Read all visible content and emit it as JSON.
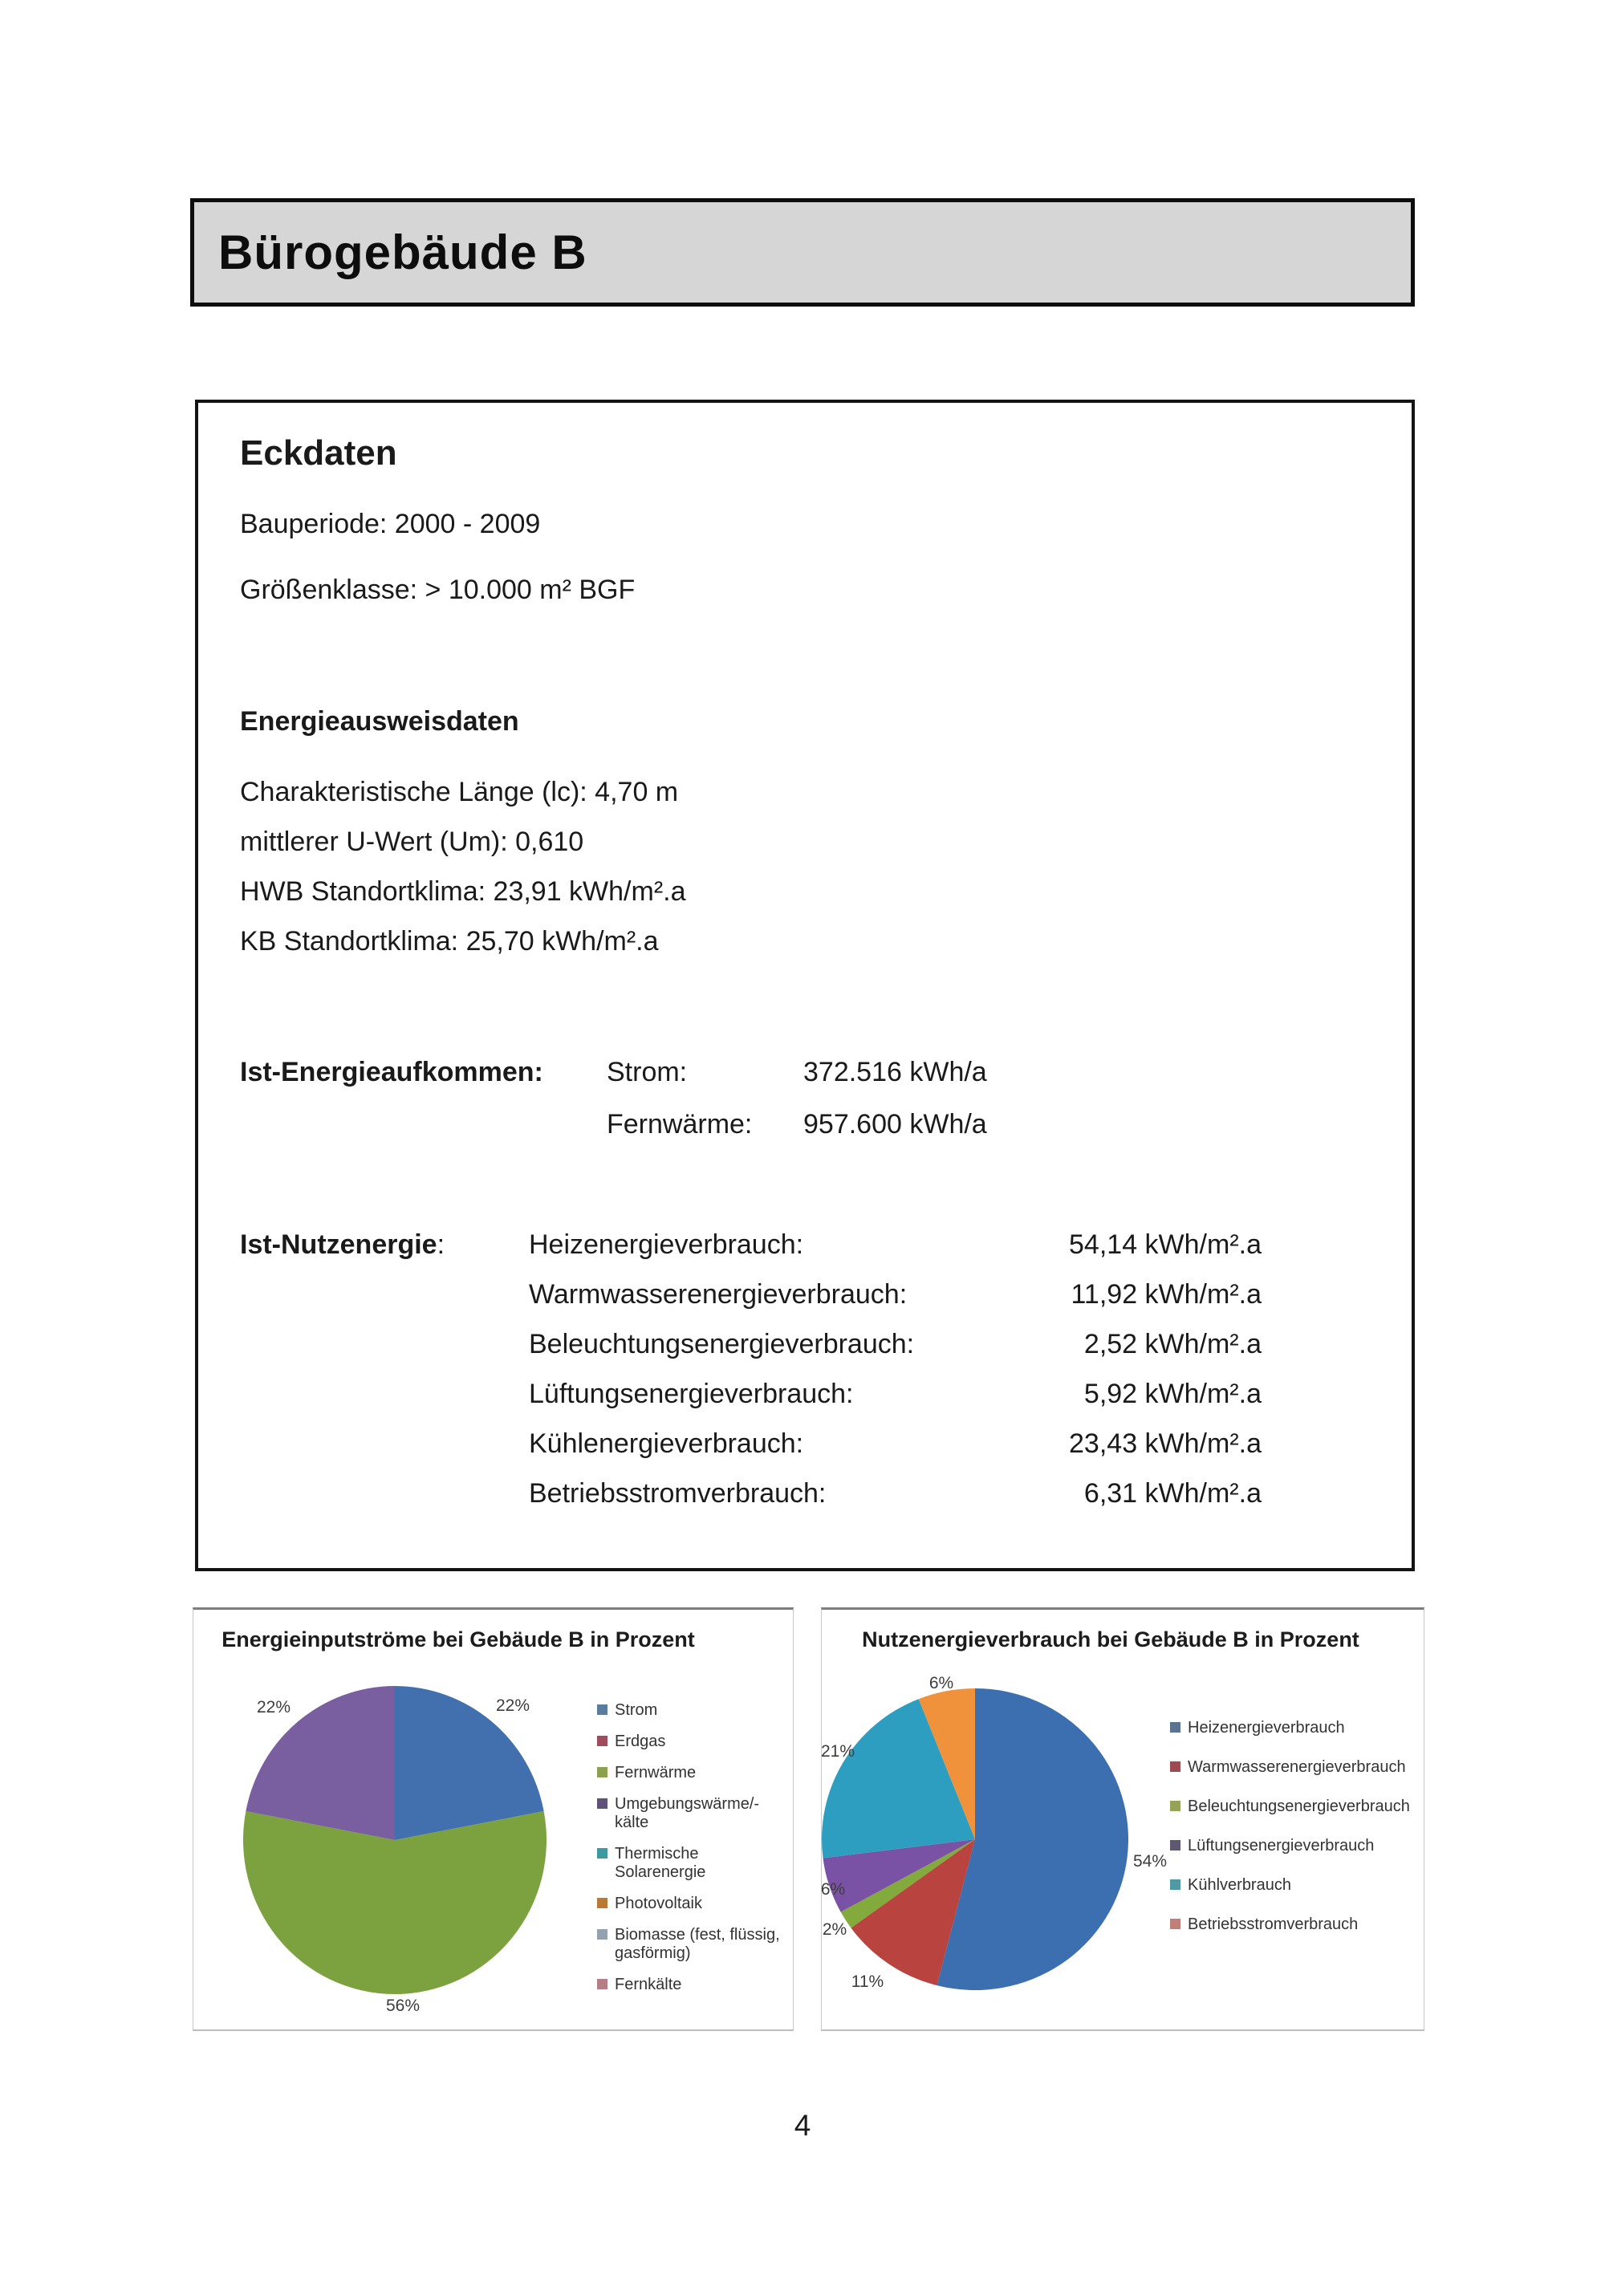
{
  "page_title": "Bürogebäude B",
  "page_number": "4",
  "eckdaten": {
    "heading": "Eckdaten",
    "bauperiode": "Bauperiode: 2000 - 2009",
    "groessenklasse": "Größenklasse: > 10.000 m² BGF",
    "energieausweis_heading": "Energieausweisdaten",
    "energieausweis_lines": [
      "Charakteristische Länge (lc): 4,70 m",
      "mittlerer U-Wert (Um): 0,610",
      "HWB Standortklima: 23,91 kWh/m².a",
      "KB Standortklima: 25,70 kWh/m².a"
    ],
    "ist_energieaufkommen_label": "Ist-Energieaufkommen:",
    "ist_energieaufkommen_rows": [
      {
        "name": "Strom:",
        "value": "372.516 kWh/a"
      },
      {
        "name": "Fernwärme:",
        "value": "957.600 kWh/a"
      }
    ],
    "ist_nutzenergie_label": "Ist-Nutzenergie",
    "ist_nutzenergie_colon": ":",
    "ist_nutzenergie_rows": [
      {
        "name": "Heizenergieverbrauch:",
        "value": "54,14 kWh/m².a"
      },
      {
        "name": "Warmwasserenergieverbrauch:",
        "value": "11,92 kWh/m².a"
      },
      {
        "name": "Beleuchtungsenergieverbrauch:",
        "value": "2,52 kWh/m².a"
      },
      {
        "name": "Lüftungsenergieverbrauch:",
        "value": "5,92 kWh/m².a"
      },
      {
        "name": "Kühlenergieverbrauch:",
        "value": "23,43 kWh/m².a"
      },
      {
        "name": "Betriebsstromverbrauch:",
        "value": "6,31 kWh/m².a"
      }
    ]
  },
  "chart_data": [
    {
      "type": "pie",
      "title": "Energieinputströme bei Gebäude B in Prozent",
      "legend_position": "right",
      "total": 100,
      "slices": [
        {
          "label": "Strom",
          "value": 22,
          "percent_label": "22%",
          "color": "#4270ae",
          "swatch": "#5c7c9d"
        },
        {
          "label": "Erdgas",
          "value": 0,
          "percent_label": "",
          "color": "#a33f55",
          "swatch": "#a04a5e"
        },
        {
          "label": "Fernwärme",
          "value": 56,
          "percent_label": "56%",
          "color": "#7ca23f",
          "swatch": "#8ca050"
        },
        {
          "label": "Umgebungswärme/-kälte",
          "value": 22,
          "percent_label": "22%",
          "color": "#7a5fa0",
          "swatch": "#60517a"
        },
        {
          "label": "Thermische Solarenergie",
          "value": 0,
          "percent_label": "",
          "color": "#2f9fae",
          "swatch": "#3d9aa0"
        },
        {
          "label": "Photovoltaik",
          "value": 0,
          "percent_label": "",
          "color": "#e3902f",
          "swatch": "#bb7a33"
        },
        {
          "label": "Biomasse (fest, flüssig, gasförmig)",
          "value": 0,
          "percent_label": "",
          "color": "#90a0b0",
          "swatch": "#93a2ae"
        },
        {
          "label": "Fernkälte",
          "value": 0,
          "percent_label": "",
          "color": "#bd7f88",
          "swatch": "#b57d85"
        }
      ]
    },
    {
      "type": "pie",
      "title": "Nutzenergieverbrauch bei Gebäude B in Prozent",
      "legend_position": "right",
      "total": 100,
      "slices": [
        {
          "label": "Heizenergieverbrauch",
          "value": 54,
          "percent_label": "54%",
          "color": "#3c6fb0",
          "swatch": "#5a7391"
        },
        {
          "label": "Warmwasserenergieverbrauch",
          "value": 11,
          "percent_label": "11%",
          "color": "#b8433f",
          "swatch": "#9d4a50"
        },
        {
          "label": "Beleuchtungsenergieverbrauch",
          "value": 2,
          "percent_label": "2%",
          "color": "#82aa3c",
          "swatch": "#95a356"
        },
        {
          "label": "Lüftungsenergieverbrauch",
          "value": 6,
          "percent_label": "6%",
          "color": "#7a52a5",
          "swatch": "#5e5870"
        },
        {
          "label": "Kühlverbrauch",
          "value": 21,
          "percent_label": "21%",
          "color": "#2e9ec0",
          "swatch": "#4f99a5"
        },
        {
          "label": "Betriebsstromverbrauch",
          "value": 6,
          "percent_label": "6%",
          "color": "#f0913b",
          "swatch": "#c08078"
        }
      ]
    }
  ]
}
